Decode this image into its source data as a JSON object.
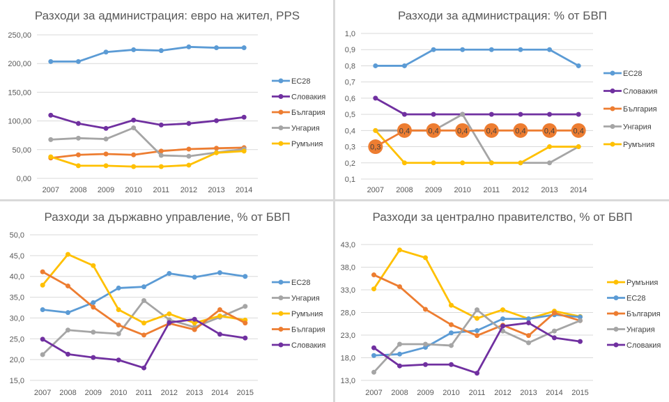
{
  "colors": {
    "eu28": "#5b9bd5",
    "slovakia": "#7030a0",
    "bulgaria": "#ed7d31",
    "hungary": "#a5a5a5",
    "romania": "#ffc000"
  },
  "chart_data": [
    {
      "type": "line",
      "title": "Разходи за администрация: евро на жител, PPS",
      "xlabel": "",
      "ylabel": "",
      "categories": [
        "2007",
        "2008",
        "2009",
        "2010",
        "2011",
        "2012",
        "2013",
        "2014"
      ],
      "ylim": [
        0,
        250
      ],
      "yticks": [
        0,
        50,
        100,
        150,
        200,
        250
      ],
      "ytick_labels": [
        "0,00",
        "50,00",
        "100,00",
        "150,00",
        "200,00",
        "250,00"
      ],
      "grid": true,
      "legend": "right",
      "series": [
        {
          "name": "ЕС28",
          "key": "eu28",
          "values": [
            203.5,
            203.5,
            220,
            224,
            222.5,
            229,
            227.5,
            227.5
          ]
        },
        {
          "name": "Словакия",
          "key": "slovakia",
          "values": [
            110,
            95.5,
            87,
            101.5,
            93,
            95.5,
            100.5,
            106.5
          ]
        },
        {
          "name": "България",
          "key": "bulgaria",
          "values": [
            35.5,
            41,
            42.5,
            41,
            47.5,
            51,
            52.5,
            53.5
          ]
        },
        {
          "name": "Унгария",
          "key": "hungary",
          "values": [
            67.5,
            70,
            68.5,
            88,
            40,
            38.5,
            45,
            51
          ]
        },
        {
          "name": "Румъния",
          "key": "romania",
          "values": [
            37.5,
            22,
            22,
            20.5,
            20.5,
            23,
            44.5,
            47.5
          ]
        }
      ]
    },
    {
      "type": "line",
      "title": "Разходи за администрация: % от БВП",
      "xlabel": "",
      "ylabel": "",
      "categories": [
        "2007",
        "2008",
        "2009",
        "2010",
        "2011",
        "2012",
        "2013",
        "2014"
      ],
      "ylim": [
        0.1,
        1.0
      ],
      "yticks": [
        0.1,
        0.2,
        0.3,
        0.4,
        0.5,
        0.6,
        0.7,
        0.8,
        0.9,
        1.0
      ],
      "ytick_labels": [
        "0,1",
        "0,2",
        "0,3",
        "0,4",
        "0,5",
        "0,6",
        "0,7",
        "0,8",
        "0,9",
        "1,0"
      ],
      "grid": true,
      "legend": "right",
      "series": [
        {
          "name": "ЕС28",
          "key": "eu28",
          "values": [
            0.8,
            0.8,
            0.9,
            0.9,
            0.9,
            0.9,
            0.9,
            0.8
          ]
        },
        {
          "name": "Словакия",
          "key": "slovakia",
          "values": [
            0.6,
            0.5,
            0.5,
            0.5,
            0.5,
            0.5,
            0.5,
            0.5
          ]
        },
        {
          "name": "Унгария",
          "key": "hungary",
          "values": [
            0.4,
            0.4,
            0.4,
            0.5,
            0.2,
            0.2,
            0.2,
            0.3
          ]
        },
        {
          "name": "Румъния",
          "key": "romania",
          "values": [
            0.4,
            0.2,
            0.2,
            0.2,
            0.2,
            0.2,
            0.3,
            0.3
          ]
        },
        {
          "name": "България",
          "key": "bulgaria",
          "values": [
            0.3,
            0.4,
            0.4,
            0.4,
            0.4,
            0.4,
            0.4,
            0.4
          ],
          "data_labels": [
            "0,3",
            "0,4",
            "0,4",
            "0,4",
            "0,4",
            "0,4",
            "0,4",
            "0,4"
          ]
        }
      ],
      "legend_order": [
        "eu28",
        "slovakia",
        "bulgaria",
        "hungary",
        "romania"
      ]
    },
    {
      "type": "line",
      "title": "Разходи за държавно управление, % от БВП",
      "xlabel": "",
      "ylabel": "",
      "categories": [
        "2007",
        "2008",
        "2009",
        "2010",
        "2011",
        "2012",
        "2013",
        "2014",
        "2015"
      ],
      "ylim": [
        15,
        50
      ],
      "yticks": [
        15,
        20,
        25,
        30,
        35,
        40,
        45,
        50
      ],
      "ytick_labels": [
        "15,0",
        "20,0",
        "25,0",
        "30,0",
        "35,0",
        "40,0",
        "45,0",
        "50,0"
      ],
      "grid": true,
      "legend": "right",
      "series": [
        {
          "name": "ЕС28",
          "key": "eu28",
          "values": [
            32.0,
            31.3,
            33.7,
            37.2,
            37.5,
            40.7,
            39.8,
            40.9,
            40.0
          ]
        },
        {
          "name": "Унгария",
          "key": "hungary",
          "values": [
            21.2,
            27.1,
            26.6,
            26.2,
            34.2,
            29.6,
            27.8,
            30.2,
            32.8
          ]
        },
        {
          "name": "Румъния",
          "key": "romania",
          "values": [
            37.9,
            45.3,
            42.6,
            32.0,
            28.8,
            31.0,
            28.8,
            30.5,
            29.5
          ]
        },
        {
          "name": "България",
          "key": "bulgaria",
          "values": [
            41.1,
            37.7,
            32.6,
            28.3,
            25.9,
            28.7,
            27.2,
            32.0,
            28.8
          ]
        },
        {
          "name": "Словакия",
          "key": "slovakia",
          "values": [
            24.9,
            21.3,
            20.5,
            19.9,
            18.0,
            28.9,
            29.7,
            26.1,
            25.2
          ]
        }
      ]
    },
    {
      "type": "line",
      "title": "Разходи за централно правителство, % от БВП",
      "xlabel": "",
      "ylabel": "",
      "categories": [
        "2007",
        "2008",
        "2009",
        "2010",
        "2011",
        "2012",
        "2013",
        "2014",
        "2015"
      ],
      "ylim": [
        13,
        43
      ],
      "yticks": [
        13,
        18,
        23,
        28,
        33,
        38,
        43
      ],
      "ytick_labels": [
        "13,0",
        "18,0",
        "23,0",
        "28,0",
        "33,0",
        "38,0",
        "43,0"
      ],
      "grid": true,
      "legend": "right",
      "series": [
        {
          "name": "Румъния",
          "key": "romania",
          "values": [
            33.2,
            41.8,
            40.1,
            29.6,
            26.7,
            28.6,
            26.6,
            28.3,
            27.1
          ]
        },
        {
          "name": "ЕС28",
          "key": "eu28",
          "values": [
            18.5,
            18.8,
            20.3,
            23.5,
            24.0,
            26.6,
            26.6,
            27.5,
            27.0
          ]
        },
        {
          "name": "България",
          "key": "bulgaria",
          "values": [
            36.3,
            33.7,
            28.7,
            25.3,
            22.9,
            25.2,
            22.9,
            27.9,
            26.2
          ]
        },
        {
          "name": "Унгария",
          "key": "hungary",
          "values": [
            14.8,
            21.0,
            21.0,
            20.7,
            28.6,
            23.9,
            21.3,
            23.9,
            26.2
          ]
        },
        {
          "name": "Словакия",
          "key": "slovakia",
          "values": [
            20.2,
            16.2,
            16.5,
            16.5,
            14.6,
            25.0,
            25.7,
            22.4,
            21.6
          ]
        }
      ]
    }
  ]
}
